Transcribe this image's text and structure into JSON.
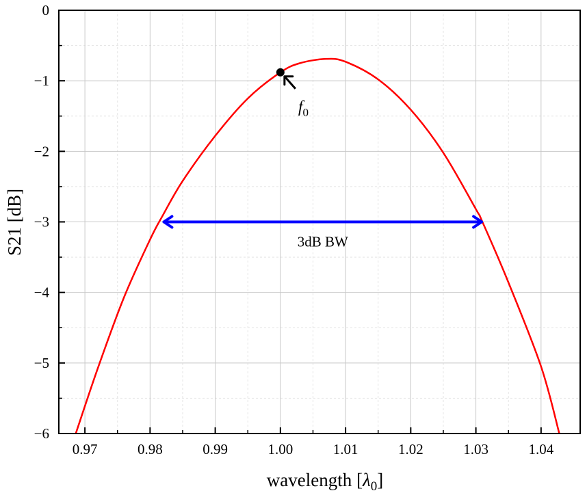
{
  "chart_data": {
    "type": "line",
    "title": "",
    "xlabel": "wavelength",
    "xlabel_symbol": "λ",
    "xlabel_subscript": "0",
    "ylabel": "S21 [dB]",
    "xlim": [
      0.966,
      1.046
    ],
    "ylim": [
      -6,
      0
    ],
    "xticks": [
      0.97,
      0.98,
      0.99,
      1.0,
      1.01,
      1.02,
      1.03,
      1.04
    ],
    "xtick_labels": [
      "0.97",
      "0.98",
      "0.99",
      "1.00",
      "1.01",
      "1.02",
      "1.03",
      "1.04"
    ],
    "yticks": [
      0,
      -1,
      -2,
      -3,
      -4,
      -5,
      -6
    ],
    "ytick_labels": [
      "0",
      "−1",
      "−2",
      "−3",
      "−4",
      "−5",
      "−6"
    ],
    "grid": true,
    "series": [
      {
        "name": "S21",
        "color": "#ff0000",
        "x": [
          0.9686,
          0.972,
          0.976,
          0.98,
          0.982,
          0.985,
          0.99,
          0.995,
          1.0,
          1.003,
          1.007,
          1.01,
          1.015,
          1.02,
          1.025,
          1.03,
          1.031,
          1.035,
          1.04,
          1.0428
        ],
        "y": [
          -6.0,
          -5.07,
          -4.07,
          -3.25,
          -2.9,
          -2.42,
          -1.78,
          -1.25,
          -0.88,
          -0.75,
          -0.69,
          -0.73,
          -0.98,
          -1.41,
          -2.02,
          -2.82,
          -3.0,
          -3.86,
          -5.05,
          -6.0
        ]
      }
    ],
    "annotations": {
      "marker": {
        "label_base": "f",
        "label_sub": "0",
        "x": 1.0,
        "y": -0.88
      },
      "bandwidth": {
        "label": "3dB BW",
        "x_start": 0.982,
        "x_end": 1.031,
        "y": -3.0
      }
    }
  }
}
